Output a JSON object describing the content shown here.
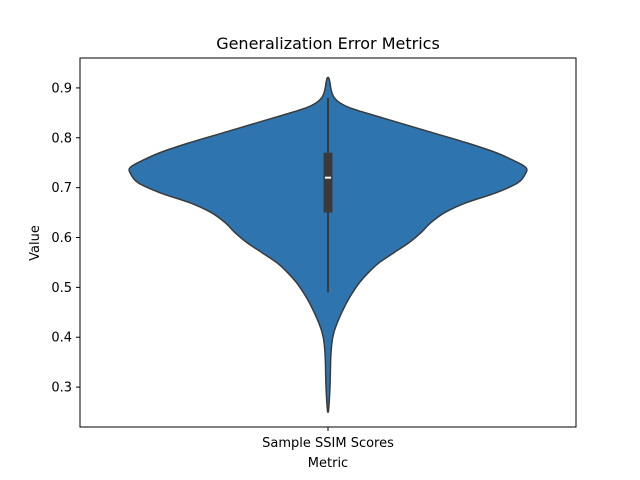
{
  "chart_data": {
    "type": "violin",
    "title": "Generalization Error Metrics",
    "xlabel": "Metric",
    "ylabel": "Value",
    "categories": [
      "Sample SSIM Scores"
    ],
    "ylim": [
      0.22,
      0.96
    ],
    "yticks": [
      0.3,
      0.4,
      0.5,
      0.6,
      0.7,
      0.8,
      0.9
    ],
    "grid": false,
    "violin": {
      "name": "Sample SSIM Scores",
      "color": "#2e75b0",
      "outline_color": "#3a3a3a",
      "min": 0.25,
      "max": 0.92,
      "whisker_low": 0.49,
      "whisker_high": 0.88,
      "q1": 0.65,
      "median": 0.72,
      "q3": 0.77,
      "density_profile": [
        [
          0.25,
          0.002
        ],
        [
          0.27,
          0.006
        ],
        [
          0.3,
          0.01
        ],
        [
          0.33,
          0.012
        ],
        [
          0.36,
          0.014
        ],
        [
          0.39,
          0.02
        ],
        [
          0.41,
          0.03
        ],
        [
          0.43,
          0.048
        ],
        [
          0.45,
          0.07
        ],
        [
          0.47,
          0.095
        ],
        [
          0.49,
          0.125
        ],
        [
          0.51,
          0.16
        ],
        [
          0.53,
          0.205
        ],
        [
          0.55,
          0.26
        ],
        [
          0.57,
          0.335
        ],
        [
          0.59,
          0.41
        ],
        [
          0.61,
          0.47
        ],
        [
          0.63,
          0.52
        ],
        [
          0.65,
          0.59
        ],
        [
          0.67,
          0.7
        ],
        [
          0.69,
          0.85
        ],
        [
          0.71,
          0.96
        ],
        [
          0.73,
          1.0
        ],
        [
          0.74,
          1.0
        ],
        [
          0.75,
          0.96
        ],
        [
          0.77,
          0.85
        ],
        [
          0.79,
          0.7
        ],
        [
          0.81,
          0.53
        ],
        [
          0.83,
          0.36
        ],
        [
          0.85,
          0.19
        ],
        [
          0.86,
          0.11
        ],
        [
          0.87,
          0.06
        ],
        [
          0.88,
          0.032
        ],
        [
          0.89,
          0.02
        ],
        [
          0.9,
          0.014
        ],
        [
          0.91,
          0.01
        ],
        [
          0.92,
          0.004
        ]
      ]
    }
  }
}
